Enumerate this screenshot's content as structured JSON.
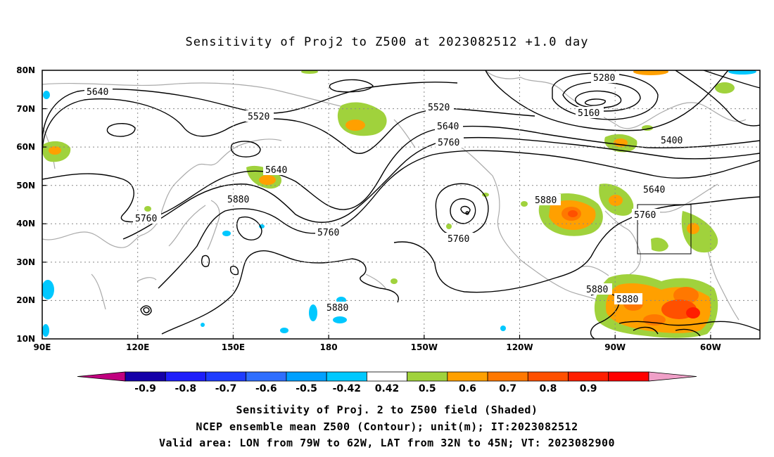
{
  "title": "Sensitivity of Proj2 to Z500 at 2023082512 +1.0 day",
  "lat_labels": [
    "80N",
    "70N",
    "60N",
    "50N",
    "40N",
    "30N",
    "20N",
    "10N"
  ],
  "lon_labels": [
    "90E",
    "120E",
    "150E",
    "180",
    "150W",
    "120W",
    "90W",
    "60W"
  ],
  "contour_labels": [
    {
      "text": "5640"
    },
    {
      "text": "5520"
    },
    {
      "text": "5520"
    },
    {
      "text": "5640"
    },
    {
      "text": "5760"
    },
    {
      "text": "5280"
    },
    {
      "text": "5160"
    },
    {
      "text": "5400"
    },
    {
      "text": "5640"
    },
    {
      "text": "5760"
    },
    {
      "text": "5640"
    },
    {
      "text": "5880"
    },
    {
      "text": "5760"
    },
    {
      "text": "5760"
    },
    {
      "text": "5760"
    },
    {
      "text": "5880"
    },
    {
      "text": "5880"
    },
    {
      "text": "5880"
    },
    {
      "text": "5880"
    }
  ],
  "colorbar": {
    "colors": [
      "#c0007f",
      "#1400a8",
      "#1e1efa",
      "#1e3cff",
      "#2e6eff",
      "#00a0ff",
      "#00c8ff",
      "#ffffff",
      "#a0d23c",
      "#ffa000",
      "#ff7800",
      "#ff5000",
      "#ff1e00",
      "#ff0000",
      "#f0a0c8"
    ],
    "labels": [
      "-0.9",
      "-0.8",
      "-0.7",
      "-0.6",
      "-0.5",
      "-0.42",
      "0.42",
      "0.5",
      "0.6",
      "0.7",
      "0.8",
      "0.9"
    ]
  },
  "footer": {
    "line1": "Sensitivity of Proj. 2 to Z500 field (Shaded)",
    "line2": "NCEP ensemble mean Z500 (Contour); unit(m); IT:2023082512",
    "line3": "Valid area: LON from 79W to 62W, LAT from 32N to 45N; VT: 2023082900"
  }
}
